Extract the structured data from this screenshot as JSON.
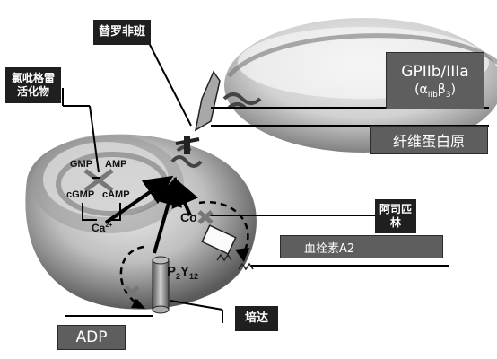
{
  "labels": {
    "tirofiban": "替罗非班",
    "clopidogrel": "氯吡格雷\n活化物",
    "aspirin": "阿司匹\n林",
    "thromboxane": "血栓素A2",
    "ticagrelor": "培达",
    "adp": "ADP",
    "fibrinogen": "纤维蛋白原",
    "gp_receptor_name": "GPIIb/IIIa",
    "gp_receptor_alpha": "α",
    "gp_receptor_alpha_sub": "IIb",
    "gp_receptor_beta": "β",
    "gp_receptor_beta_sub": "3"
  },
  "molecules": {
    "gmp": "GMP",
    "amp": "AMP",
    "cgmp": "cGMP",
    "camp": "cAMP",
    "ca": "Ca",
    "ca_sup": "2+",
    "cox": "Co",
    "p2y12_p": "P",
    "p2y12_sub": "2",
    "p2y12_y": "Y",
    "p2y12_num": "12"
  },
  "colors": {
    "label_dark": "#1f1f1f",
    "label_grey": "#5e5e5e",
    "platelet_light": "#d8d8d8",
    "platelet_dark": "#6b6b6b"
  }
}
